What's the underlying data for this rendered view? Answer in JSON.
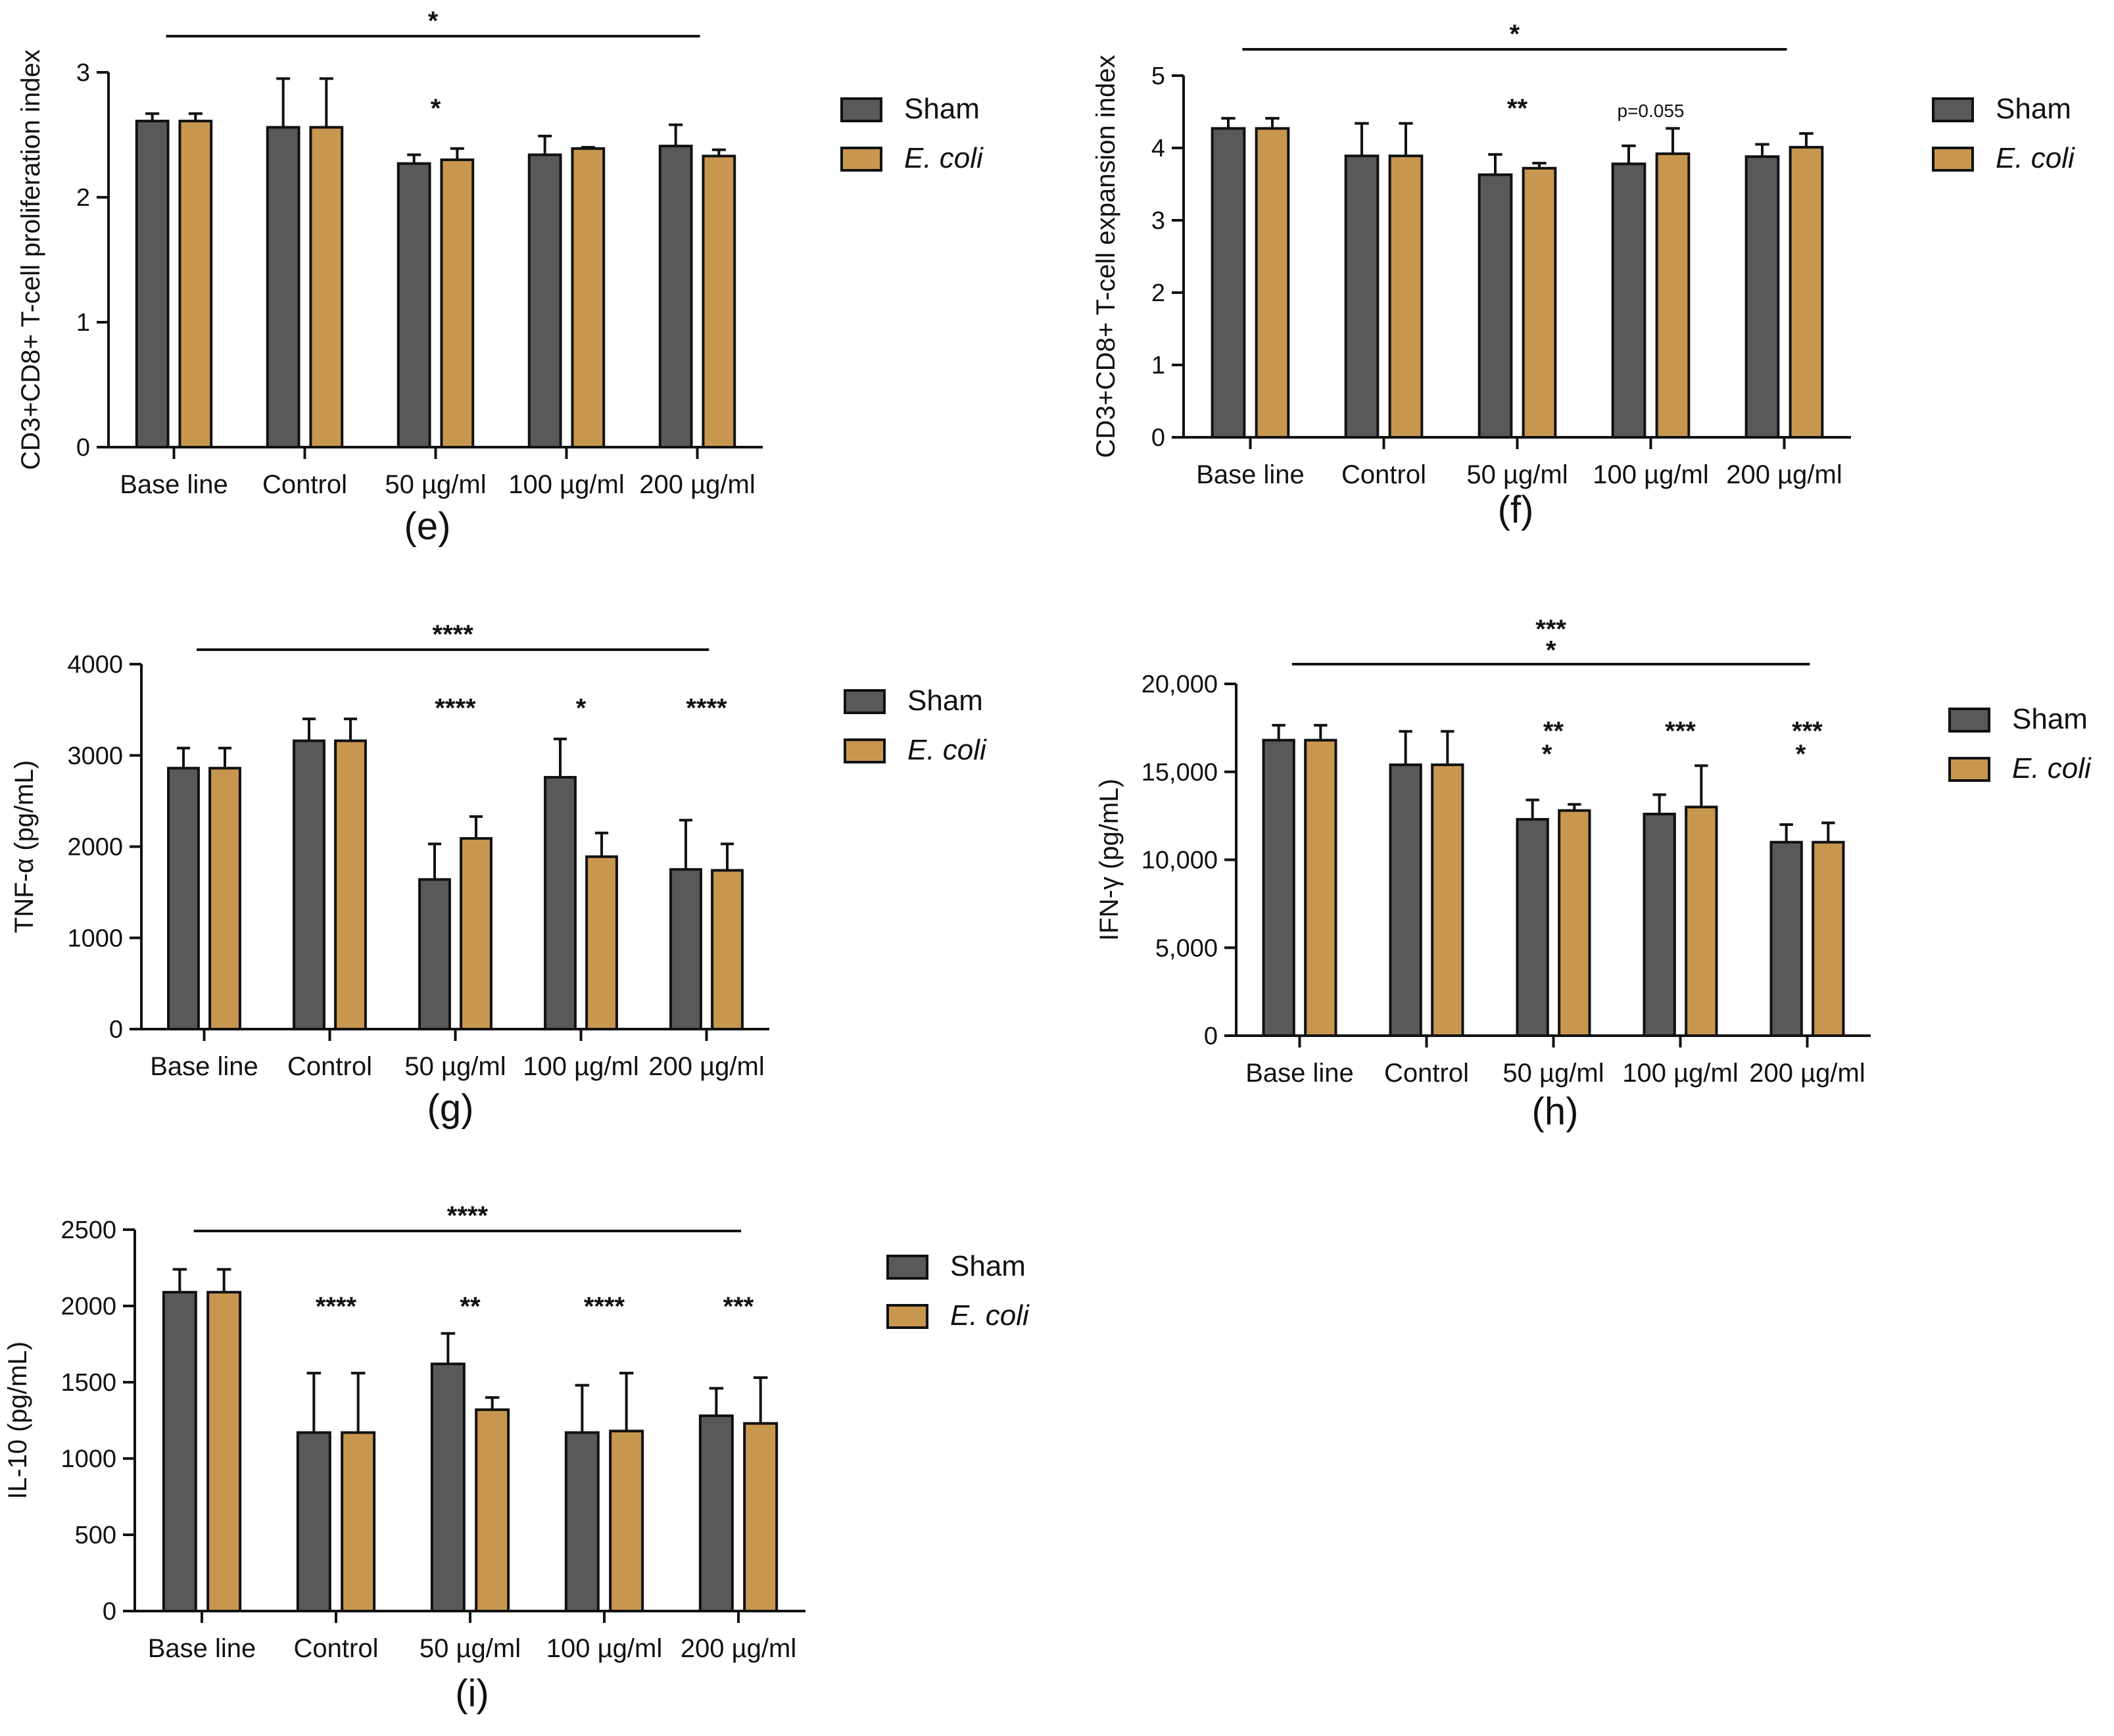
{
  "colors": {
    "sham": "#595959",
    "ecoli": "#c8974f",
    "ink": "#111111"
  },
  "chart_data": [
    {
      "id": "e",
      "type": "bar",
      "panel_label": "(e)",
      "ylabel": "CD3+CD8+ T-cell proliferation index",
      "xlabel": "",
      "ylim": [
        0,
        3
      ],
      "yticks": [
        "0",
        "1",
        "2",
        "3"
      ],
      "categories": [
        "Base line",
        "Control",
        "50 µg/ml",
        "100 µg/ml",
        "200 µg/ml"
      ],
      "series": [
        {
          "name": "Sham",
          "values": [
            2.61,
            2.56,
            2.27,
            2.34,
            2.41
          ],
          "errors": [
            0.06,
            0.39,
            0.07,
            0.15,
            0.17
          ]
        },
        {
          "name": "E. coli",
          "values": [
            2.61,
            2.56,
            2.3,
            2.39,
            2.33
          ],
          "errors": [
            0.06,
            0.39,
            0.09,
            0.01,
            0.05
          ]
        }
      ],
      "bracket": {
        "label": "*"
      },
      "annotations": [
        "",
        "",
        "*",
        "",
        ""
      ],
      "annotations2": [
        "",
        "",
        "",
        "",
        ""
      ],
      "legend": [
        "Sham",
        "E. coli"
      ],
      "legend_position": "right"
    },
    {
      "id": "f",
      "type": "bar",
      "panel_label": "(f)",
      "ylabel": "CD3+CD8+ T-cell expansion index",
      "xlabel": "",
      "ylim": [
        0,
        5
      ],
      "yticks": [
        "0",
        "1",
        "2",
        "3",
        "4",
        "5"
      ],
      "categories": [
        "Base line",
        "Control",
        "50 µg/ml",
        "100 µg/ml",
        "200 µg/ml"
      ],
      "series": [
        {
          "name": "Sham",
          "values": [
            4.27,
            3.89,
            3.63,
            3.78,
            3.88
          ],
          "errors": [
            0.14,
            0.45,
            0.28,
            0.25,
            0.17
          ]
        },
        {
          "name": "E. coli",
          "values": [
            4.27,
            3.89,
            3.72,
            3.92,
            4.01
          ],
          "errors": [
            0.14,
            0.45,
            0.07,
            0.35,
            0.19
          ]
        }
      ],
      "bracket": {
        "label": "*"
      },
      "annotations": [
        "",
        "",
        "**",
        "p=0.055",
        ""
      ],
      "annotations2": [
        "",
        "",
        "",
        "",
        ""
      ],
      "legend": [
        "Sham",
        "E. coli"
      ],
      "legend_position": "right"
    },
    {
      "id": "g",
      "type": "bar",
      "panel_label": "(g)",
      "ylabel": "TNF-α (pg/mL)",
      "xlabel": "",
      "ylim": [
        0,
        4000
      ],
      "yticks": [
        "0",
        "1000",
        "2000",
        "3000",
        "4000"
      ],
      "categories": [
        "Base line",
        "Control",
        "50 µg/ml",
        "100 µg/ml",
        "200 µg/ml"
      ],
      "series": [
        {
          "name": "Sham",
          "values": [
            2860,
            3160,
            1640,
            2760,
            1750
          ],
          "errors": [
            220,
            240,
            390,
            420,
            540
          ]
        },
        {
          "name": "E. coli",
          "values": [
            2860,
            3160,
            2090,
            1890,
            1740
          ],
          "errors": [
            220,
            240,
            240,
            260,
            290
          ]
        }
      ],
      "bracket": {
        "label": "****"
      },
      "annotations": [
        "",
        "",
        "****",
        "*",
        "****"
      ],
      "annotations2": [
        "",
        "",
        "",
        "",
        ""
      ],
      "legend": [
        "Sham",
        "E. coli"
      ],
      "legend_position": "right"
    },
    {
      "id": "h",
      "type": "bar",
      "panel_label": "(h)",
      "ylabel": "IFN-γ (pg/mL)",
      "xlabel": "",
      "ylim": [
        0,
        20000
      ],
      "yticks": [
        "0",
        "5,000",
        "10,000",
        "15,000",
        "20,000"
      ],
      "categories": [
        "Base line",
        "Control",
        "50 µg/ml",
        "100 µg/ml",
        "200 µg/ml"
      ],
      "series": [
        {
          "name": "Sham",
          "values": [
            16800,
            15400,
            12300,
            12600,
            11000
          ],
          "errors": [
            850,
            1900,
            1100,
            1100,
            1000
          ]
        },
        {
          "name": "E. coli",
          "values": [
            16800,
            15400,
            12800,
            13000,
            11000
          ],
          "errors": [
            850,
            1900,
            350,
            2350,
            1100
          ]
        }
      ],
      "bracket": {
        "label": "***",
        "label2": "*"
      },
      "annotations": [
        "",
        "",
        "**",
        "***",
        "***"
      ],
      "annotations2": [
        "",
        "",
        "*",
        "",
        "*"
      ],
      "legend": [
        "Sham",
        "E. coli"
      ],
      "legend_position": "right"
    },
    {
      "id": "i",
      "type": "bar",
      "panel_label": "(i)",
      "ylabel": "IL-10 (pg/mL)",
      "xlabel": "",
      "ylim": [
        0,
        2500
      ],
      "yticks": [
        "0",
        "500",
        "1000",
        "1500",
        "2000",
        "2500"
      ],
      "categories": [
        "Base line",
        "Control",
        "50 µg/ml",
        "100 µg/ml",
        "200 µg/ml"
      ],
      "series": [
        {
          "name": "Sham",
          "values": [
            2090,
            1170,
            1620,
            1170,
            1280
          ],
          "errors": [
            150,
            390,
            200,
            310,
            180
          ]
        },
        {
          "name": "E. coli",
          "values": [
            2090,
            1170,
            1320,
            1180,
            1230
          ],
          "errors": [
            150,
            390,
            80,
            380,
            300
          ]
        }
      ],
      "bracket": {
        "label": "****"
      },
      "annotations": [
        "",
        "****",
        "**",
        "****",
        "***"
      ],
      "annotations2": [
        "",
        "",
        "",
        "",
        ""
      ],
      "legend": [
        "Sham",
        "E. coli"
      ],
      "legend_position": "right"
    }
  ]
}
